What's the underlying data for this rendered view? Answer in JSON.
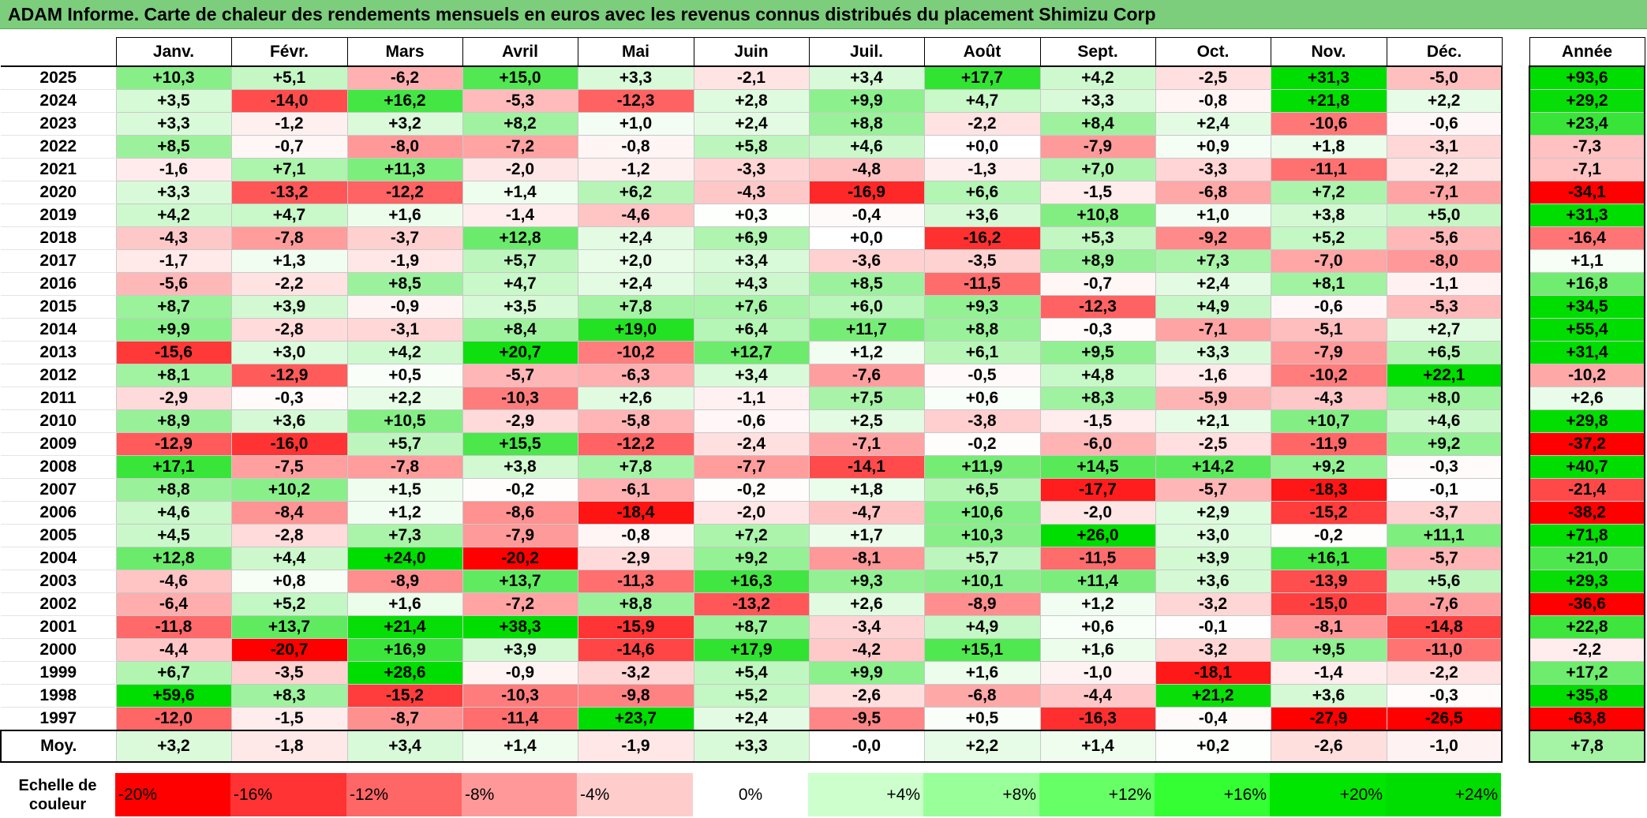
{
  "title": "ADAM Informe. Carte de chaleur des rendements mensuels en euros avec les revenus connus distribués du placement Shimizu Corp",
  "chart_data": {
    "type": "heatmap",
    "title": "ADAM Informe. Carte de chaleur des rendements mensuels en euros avec les revenus connus distribués du placement Shimizu Corp",
    "months": [
      "Janv.",
      "Févr.",
      "Mars",
      "Avril",
      "Mai",
      "Juin",
      "Juil.",
      "Août",
      "Sept.",
      "Oct.",
      "Nov.",
      "Déc."
    ],
    "year_header": "Année",
    "average_label": "Moy.",
    "rows": [
      {
        "year": "2025",
        "values": [
          "+10,3",
          "+5,1",
          "-6,2",
          "+15,0",
          "+3,3",
          "-2,1",
          "+3,4",
          "+17,7",
          "+4,2",
          "-2,5",
          "+31,3",
          "-5,0"
        ],
        "annual": "+93,6"
      },
      {
        "year": "2024",
        "values": [
          "+3,5",
          "-14,0",
          "+16,2",
          "-5,3",
          "-12,3",
          "+2,8",
          "+9,9",
          "+4,7",
          "+3,3",
          "-0,8",
          "+21,8",
          "+2,2"
        ],
        "annual": "+29,2"
      },
      {
        "year": "2023",
        "values": [
          "+3,3",
          "-1,2",
          "+3,2",
          "+8,2",
          "+1,0",
          "+2,4",
          "+8,8",
          "-2,2",
          "+8,4",
          "+2,4",
          "-10,6",
          "-0,6"
        ],
        "annual": "+23,4"
      },
      {
        "year": "2022",
        "values": [
          "+8,5",
          "-0,7",
          "-8,0",
          "-7,2",
          "-0,8",
          "+5,8",
          "+4,6",
          "+0,0",
          "-7,9",
          "+0,9",
          "+1,8",
          "-3,1"
        ],
        "annual": "-7,3"
      },
      {
        "year": "2021",
        "values": [
          "-1,6",
          "+7,1",
          "+11,3",
          "-2,0",
          "-1,2",
          "-3,3",
          "-4,8",
          "-1,3",
          "+7,0",
          "-3,3",
          "-11,1",
          "-2,2"
        ],
        "annual": "-7,1"
      },
      {
        "year": "2020",
        "values": [
          "+3,3",
          "-13,2",
          "-12,2",
          "+1,4",
          "+6,2",
          "-4,3",
          "-16,9",
          "+6,6",
          "-1,5",
          "-6,8",
          "+7,2",
          "-7,1"
        ],
        "annual": "-34,1"
      },
      {
        "year": "2019",
        "values": [
          "+4,2",
          "+4,7",
          "+1,6",
          "-1,4",
          "-4,6",
          "+0,3",
          "-0,4",
          "+3,6",
          "+10,8",
          "+1,0",
          "+3,8",
          "+5,0"
        ],
        "annual": "+31,3"
      },
      {
        "year": "2018",
        "values": [
          "-4,3",
          "-7,8",
          "-3,7",
          "+12,8",
          "+2,4",
          "+6,9",
          "+0,0",
          "-16,2",
          "+5,3",
          "-9,2",
          "+5,2",
          "-5,6"
        ],
        "annual": "-16,4"
      },
      {
        "year": "2017",
        "values": [
          "-1,7",
          "+1,3",
          "-1,9",
          "+5,7",
          "+2,0",
          "+3,4",
          "-3,6",
          "-3,5",
          "+8,9",
          "+7,3",
          "-7,0",
          "-8,0"
        ],
        "annual": "+1,1"
      },
      {
        "year": "2016",
        "values": [
          "-5,6",
          "-2,2",
          "+8,5",
          "+4,7",
          "+2,4",
          "+4,3",
          "+8,5",
          "-11,5",
          "-0,7",
          "+2,4",
          "+8,1",
          "-1,1"
        ],
        "annual": "+16,8"
      },
      {
        "year": "2015",
        "values": [
          "+8,7",
          "+3,9",
          "-0,9",
          "+3,5",
          "+7,8",
          "+7,6",
          "+6,0",
          "+9,3",
          "-12,3",
          "+4,9",
          "-0,6",
          "-5,3"
        ],
        "annual": "+34,5"
      },
      {
        "year": "2014",
        "values": [
          "+9,9",
          "-2,8",
          "-3,1",
          "+8,4",
          "+19,0",
          "+6,4",
          "+11,7",
          "+8,8",
          "-0,3",
          "-7,1",
          "-5,1",
          "+2,7"
        ],
        "annual": "+55,4"
      },
      {
        "year": "2013",
        "values": [
          "-15,6",
          "+3,0",
          "+4,2",
          "+20,7",
          "-10,2",
          "+12,7",
          "+1,2",
          "+6,1",
          "+9,5",
          "+3,3",
          "-7,9",
          "+6,5"
        ],
        "annual": "+31,4"
      },
      {
        "year": "2012",
        "values": [
          "+8,1",
          "-12,9",
          "+0,5",
          "-5,7",
          "-6,3",
          "+3,4",
          "-7,6",
          "-0,5",
          "+4,8",
          "-1,6",
          "-10,2",
          "+22,1"
        ],
        "annual": "-10,2"
      },
      {
        "year": "2011",
        "values": [
          "-2,9",
          "-0,3",
          "+2,2",
          "-10,3",
          "+2,6",
          "-1,1",
          "+7,5",
          "+0,6",
          "+8,3",
          "-5,9",
          "-4,3",
          "+8,0"
        ],
        "annual": "+2,6"
      },
      {
        "year": "2010",
        "values": [
          "+8,9",
          "+3,6",
          "+10,5",
          "-2,9",
          "-5,8",
          "-0,6",
          "+2,5",
          "-3,8",
          "-1,5",
          "+2,1",
          "+10,7",
          "+4,6"
        ],
        "annual": "+29,8"
      },
      {
        "year": "2009",
        "values": [
          "-12,9",
          "-16,0",
          "+5,7",
          "+15,5",
          "-12,2",
          "-2,4",
          "-7,1",
          "-0,2",
          "-6,0",
          "-2,5",
          "-11,9",
          "+9,2"
        ],
        "annual": "-37,2"
      },
      {
        "year": "2008",
        "values": [
          "+17,1",
          "-7,5",
          "-7,8",
          "+3,8",
          "+7,8",
          "-7,7",
          "-14,1",
          "+11,9",
          "+14,5",
          "+14,2",
          "+9,2",
          "-0,3"
        ],
        "annual": "+40,7"
      },
      {
        "year": "2007",
        "values": [
          "+8,8",
          "+10,2",
          "+1,5",
          "-0,2",
          "-6,1",
          "-0,2",
          "+1,8",
          "+6,5",
          "-17,7",
          "-5,7",
          "-18,3",
          "-0,1"
        ],
        "annual": "-21,4"
      },
      {
        "year": "2006",
        "values": [
          "+4,6",
          "-8,4",
          "+1,2",
          "-8,6",
          "-18,4",
          "-2,0",
          "-4,7",
          "+10,6",
          "-2,0",
          "+2,9",
          "-15,2",
          "-3,7"
        ],
        "annual": "-38,2"
      },
      {
        "year": "2005",
        "values": [
          "+4,5",
          "-2,8",
          "+7,3",
          "-7,9",
          "-0,8",
          "+7,2",
          "+1,7",
          "+10,3",
          "+26,0",
          "+3,0",
          "-0,2",
          "+11,1"
        ],
        "annual": "+71,8"
      },
      {
        "year": "2004",
        "values": [
          "+12,8",
          "+4,4",
          "+24,0",
          "-20,2",
          "-2,9",
          "+9,2",
          "-8,1",
          "+5,7",
          "-11,5",
          "+3,9",
          "+16,1",
          "-5,7"
        ],
        "annual": "+21,0"
      },
      {
        "year": "2003",
        "values": [
          "-4,6",
          "+0,8",
          "-8,9",
          "+13,7",
          "-11,3",
          "+16,3",
          "+9,3",
          "+10,1",
          "+11,4",
          "+3,6",
          "-13,9",
          "+5,6"
        ],
        "annual": "+29,3"
      },
      {
        "year": "2002",
        "values": [
          "-6,4",
          "+5,2",
          "+1,6",
          "-7,2",
          "+8,8",
          "-13,2",
          "+2,6",
          "-8,9",
          "+1,2",
          "-3,2",
          "-15,0",
          "-7,6"
        ],
        "annual": "-36,6"
      },
      {
        "year": "2001",
        "values": [
          "-11,8",
          "+13,7",
          "+21,4",
          "+38,3",
          "-15,9",
          "+8,7",
          "-3,4",
          "+4,9",
          "+0,6",
          "-0,1",
          "-8,1",
          "-14,8"
        ],
        "annual": "+22,8"
      },
      {
        "year": "2000",
        "values": [
          "-4,4",
          "-20,7",
          "+16,9",
          "+3,9",
          "-14,6",
          "+17,9",
          "-4,2",
          "+15,1",
          "+1,6",
          "-3,2",
          "+9,5",
          "-11,0"
        ],
        "annual": "-2,2"
      },
      {
        "year": "1999",
        "values": [
          "+6,7",
          "-3,5",
          "+28,6",
          "-0,9",
          "-3,2",
          "+5,4",
          "+9,9",
          "+1,6",
          "-1,0",
          "-18,1",
          "-1,4",
          "-2,2"
        ],
        "annual": "+17,2"
      },
      {
        "year": "1998",
        "values": [
          "+59,6",
          "+8,3",
          "-15,2",
          "-10,3",
          "-9,8",
          "+5,2",
          "-2,6",
          "-6,8",
          "-4,4",
          "+21,2",
          "+3,6",
          "-0,3"
        ],
        "annual": "+35,8"
      },
      {
        "year": "1997",
        "values": [
          "-12,0",
          "-1,5",
          "-8,7",
          "-11,4",
          "+23,7",
          "+2,4",
          "-9,5",
          "+0,5",
          "-16,3",
          "-0,4",
          "-27,9",
          "-26,5"
        ],
        "annual": "-63,8"
      }
    ],
    "average": {
      "values": [
        "+3,2",
        "-1,8",
        "+3,4",
        "+1,4",
        "-1,9",
        "+3,3",
        "-0,0",
        "+2,2",
        "+1,4",
        "+0,2",
        "-2,6",
        "-1,0"
      ],
      "annual": "+7,8"
    },
    "color_scale": {
      "label": "Echelle de couleur",
      "steps": [
        {
          "label": "-20%",
          "value": -20,
          "color": "#ff0000"
        },
        {
          "label": "-16%",
          "value": -16,
          "color": "#ff3333"
        },
        {
          "label": "-12%",
          "value": -12,
          "color": "#ff6666"
        },
        {
          "label": "-8%",
          "value": -8,
          "color": "#ff9999"
        },
        {
          "label": "-4%",
          "value": -4,
          "color": "#ffcccc"
        },
        {
          "label": "0%",
          "value": 0,
          "color": "#ffffff"
        },
        {
          "label": "+4%",
          "value": 4,
          "color": "#ccffcc"
        },
        {
          "label": "+8%",
          "value": 8,
          "color": "#99ff99"
        },
        {
          "label": "+12%",
          "value": 12,
          "color": "#66ff66"
        },
        {
          "label": "+16%",
          "value": 16,
          "color": "#33ff33"
        },
        {
          "label": "+20%",
          "value": 20,
          "color": "#00e600"
        },
        {
          "label": "+24%",
          "value": 24,
          "color": "#00dd00"
        }
      ]
    }
  }
}
